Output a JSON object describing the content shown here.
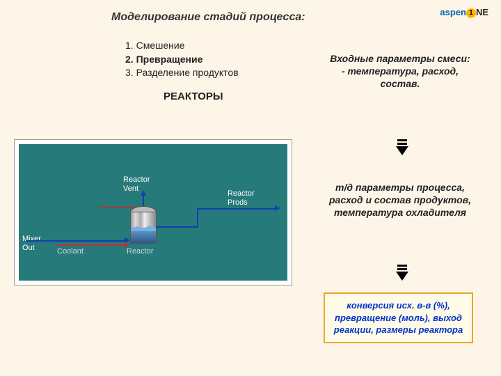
{
  "logo": {
    "brand": "aspen",
    "circle": "1",
    "suffix": "NE"
  },
  "title": "Моделирование стадий процесса:",
  "list": {
    "item1": {
      "num": "1.",
      "text": "Смешение"
    },
    "item2": {
      "num": "2.",
      "text": "Превращение"
    },
    "item3": {
      "num": "3.",
      "text": "Разделение продуктов"
    }
  },
  "subtitle": "РЕАКТОРЫ",
  "right": {
    "block1": "Входные параметры смеси:\n- температура, расход, состав.",
    "block2": "т/д параметры процесса,\nрасход и состав продуктов, температура охладителя"
  },
  "result": "конверсия исх. в-в (%), превращение (моль), выход реакции, размеры реактора",
  "flowsheet": {
    "background": "#277a7a",
    "labels": {
      "mixerOut": "Mixer\nOut",
      "coolant": "Coolant",
      "reactor": "Reactor",
      "vent": "Reactor\nVent",
      "prods": "Reactor\nProds"
    },
    "colors": {
      "stream_main": "#1040b0",
      "stream_coolant": "#c03030",
      "text": "#ffffff"
    }
  },
  "style": {
    "page_bg": "#fdf6e8",
    "result_border": "#e8a828",
    "result_text": "#0033cc"
  }
}
